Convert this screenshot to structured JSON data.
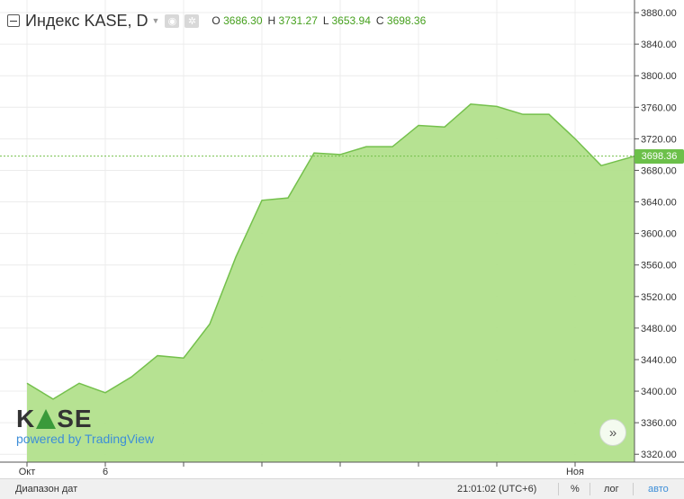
{
  "header": {
    "title": "Индекс KASE, D",
    "ohlc": [
      {
        "key": "O",
        "value": "3686.30"
      },
      {
        "key": "H",
        "value": "3731.27"
      },
      {
        "key": "L",
        "value": "3653.94"
      },
      {
        "key": "C",
        "value": "3698.36"
      }
    ]
  },
  "watermark": {
    "logo_text": "KASE",
    "powered": "powered by TradingView"
  },
  "footer": {
    "range": "Диапазон дат",
    "time": "21:01:02 (UTC+6)",
    "percent": "%",
    "log": "лог",
    "auto": "авто"
  },
  "chart_data": {
    "type": "area",
    "colors": {
      "fill": "#b2e08c",
      "line": "#74c04c",
      "grid": "#ececec",
      "price_label": "#6cc04a"
    },
    "y_ticks": [
      "3320.00",
      "3360.00",
      "3400.00",
      "3440.00",
      "3480.00",
      "3520.00",
      "3560.00",
      "3600.00",
      "3640.00",
      "3680.00",
      "3720.00",
      "3760.00",
      "3800.00",
      "3840.00",
      "3880.00"
    ],
    "ylim": [
      3310,
      3896
    ],
    "x_labels": [
      {
        "label": "Окт",
        "index": 0
      },
      {
        "label": "6",
        "index": 3
      },
      {
        "label": "Ноя",
        "index": 21
      }
    ],
    "x_ticks_at": [
      0,
      3,
      6,
      9,
      12,
      15,
      18,
      21
    ],
    "last_price": "3698.36",
    "values": [
      3410,
      3390,
      3410,
      3398,
      3418,
      3445,
      3442,
      3485,
      3570,
      3642,
      3645,
      3702,
      3700,
      3710,
      3710,
      3737,
      3735,
      3764,
      3761,
      3751,
      3751,
      3720,
      3686,
      3698
    ]
  }
}
